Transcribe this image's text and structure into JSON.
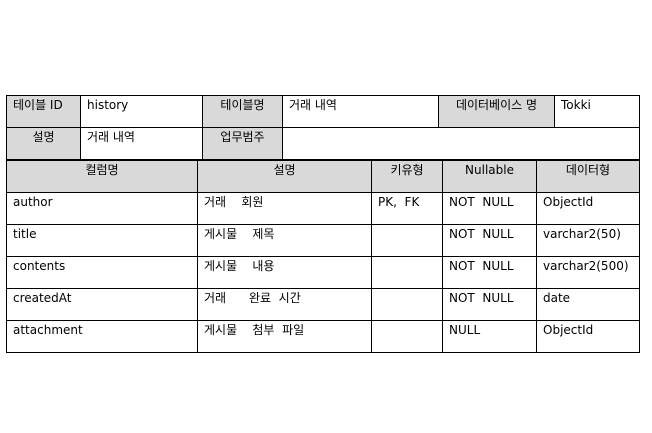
{
  "meta": {
    "table_id_label": "테이블 ID",
    "table_id_value": "history",
    "table_name_label": "테이블명",
    "table_name_value": "거래 내역",
    "db_name_label": "데이터베이스 명",
    "db_name_value": "Tokki",
    "desc_label": "설명",
    "desc_value": "거래 내역",
    "biz_label": "업무범주",
    "biz_value": ""
  },
  "columns": {
    "headers": [
      "컬럼명",
      "설명",
      "키유형",
      "Nullable",
      "데이터형"
    ],
    "rows": [
      [
        "author",
        "거래    회원",
        "PK,  FK",
        "NOT  NULL",
        "ObjectId"
      ],
      [
        "title",
        "게시물    제목",
        "",
        "NOT  NULL",
        "varchar2(50)"
      ],
      [
        "contents",
        "게시물    내용",
        "",
        "NOT  NULL",
        "varchar2(500)"
      ],
      [
        "createdAt",
        "거래      완료  시간",
        "",
        "NOT  NULL",
        "date"
      ],
      [
        "attachment",
        "게시물    첨부  파일",
        "",
        "NULL",
        "ObjectId"
      ]
    ]
  },
  "colors": {
    "label_background": "#d9d9d9",
    "border": "#000000"
  }
}
